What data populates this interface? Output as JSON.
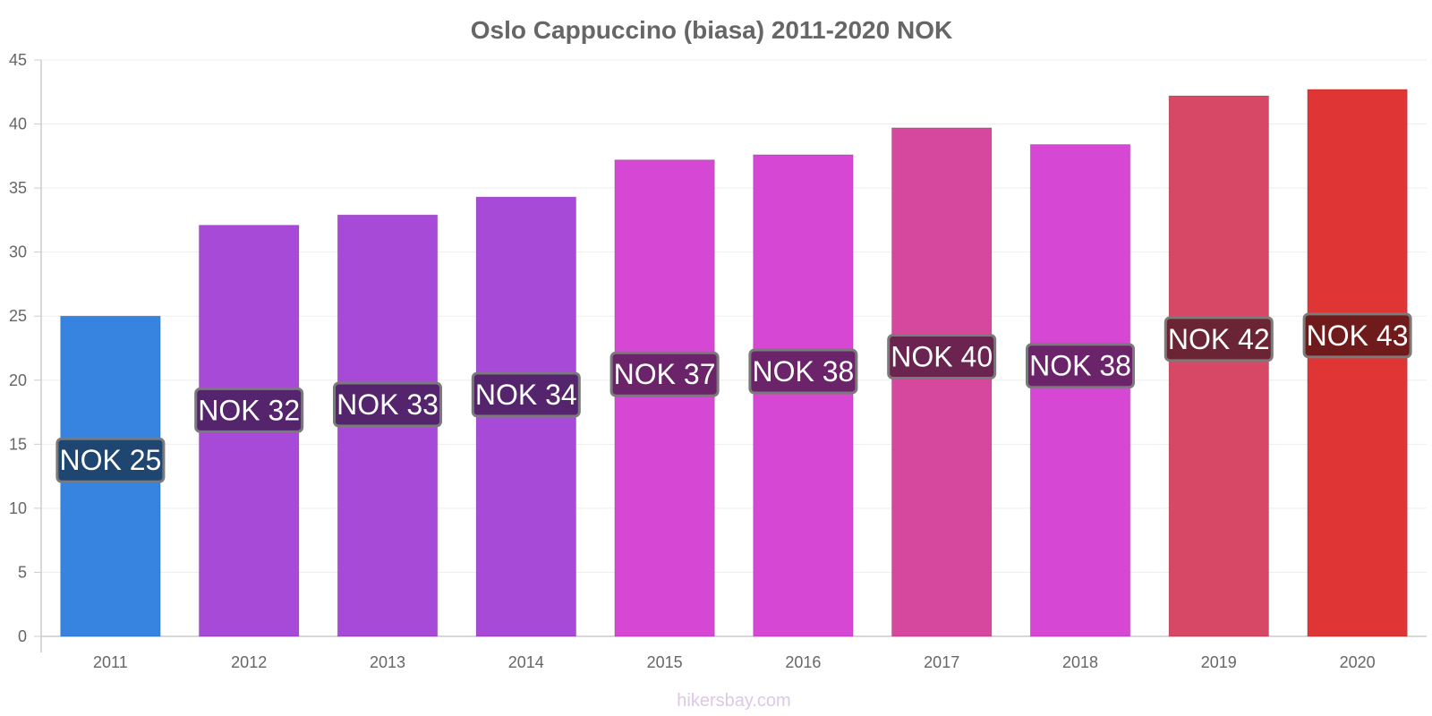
{
  "watermark": "hikersbay.com",
  "chart_data": {
    "type": "bar",
    "title": "Oslo Cappuccino (biasa) 2011-2020 NOK",
    "xlabel": "",
    "ylabel": "",
    "ylim": [
      0,
      45
    ],
    "y_ticks": [
      0,
      5,
      10,
      15,
      20,
      25,
      30,
      35,
      40,
      45
    ],
    "grid": true,
    "legend": "none",
    "categories": [
      "2011",
      "2012",
      "2013",
      "2014",
      "2015",
      "2016",
      "2017",
      "2018",
      "2019",
      "2020"
    ],
    "values": [
      25.0,
      32.1,
      32.9,
      34.3,
      37.2,
      37.6,
      39.7,
      38.4,
      42.2,
      42.7
    ],
    "data_labels": [
      "NOK 25",
      "NOK 32",
      "NOK 33",
      "NOK 34",
      "NOK 37",
      "NOK 38",
      "NOK 40",
      "NOK 38",
      "NOK 42",
      "NOK 43"
    ],
    "colors": [
      "#3784e0",
      "#a84ad8",
      "#a84ad8",
      "#a84ad8",
      "#d647d4",
      "#d647d4",
      "#d6479e",
      "#d647d4",
      "#d64866",
      "#e03535"
    ],
    "label_bg_colors": [
      "#1f4670",
      "#54256c",
      "#54256c",
      "#54256c",
      "#6b246a",
      "#6b246a",
      "#6b244f",
      "#6b246a",
      "#6b2433",
      "#701b1b"
    ]
  }
}
